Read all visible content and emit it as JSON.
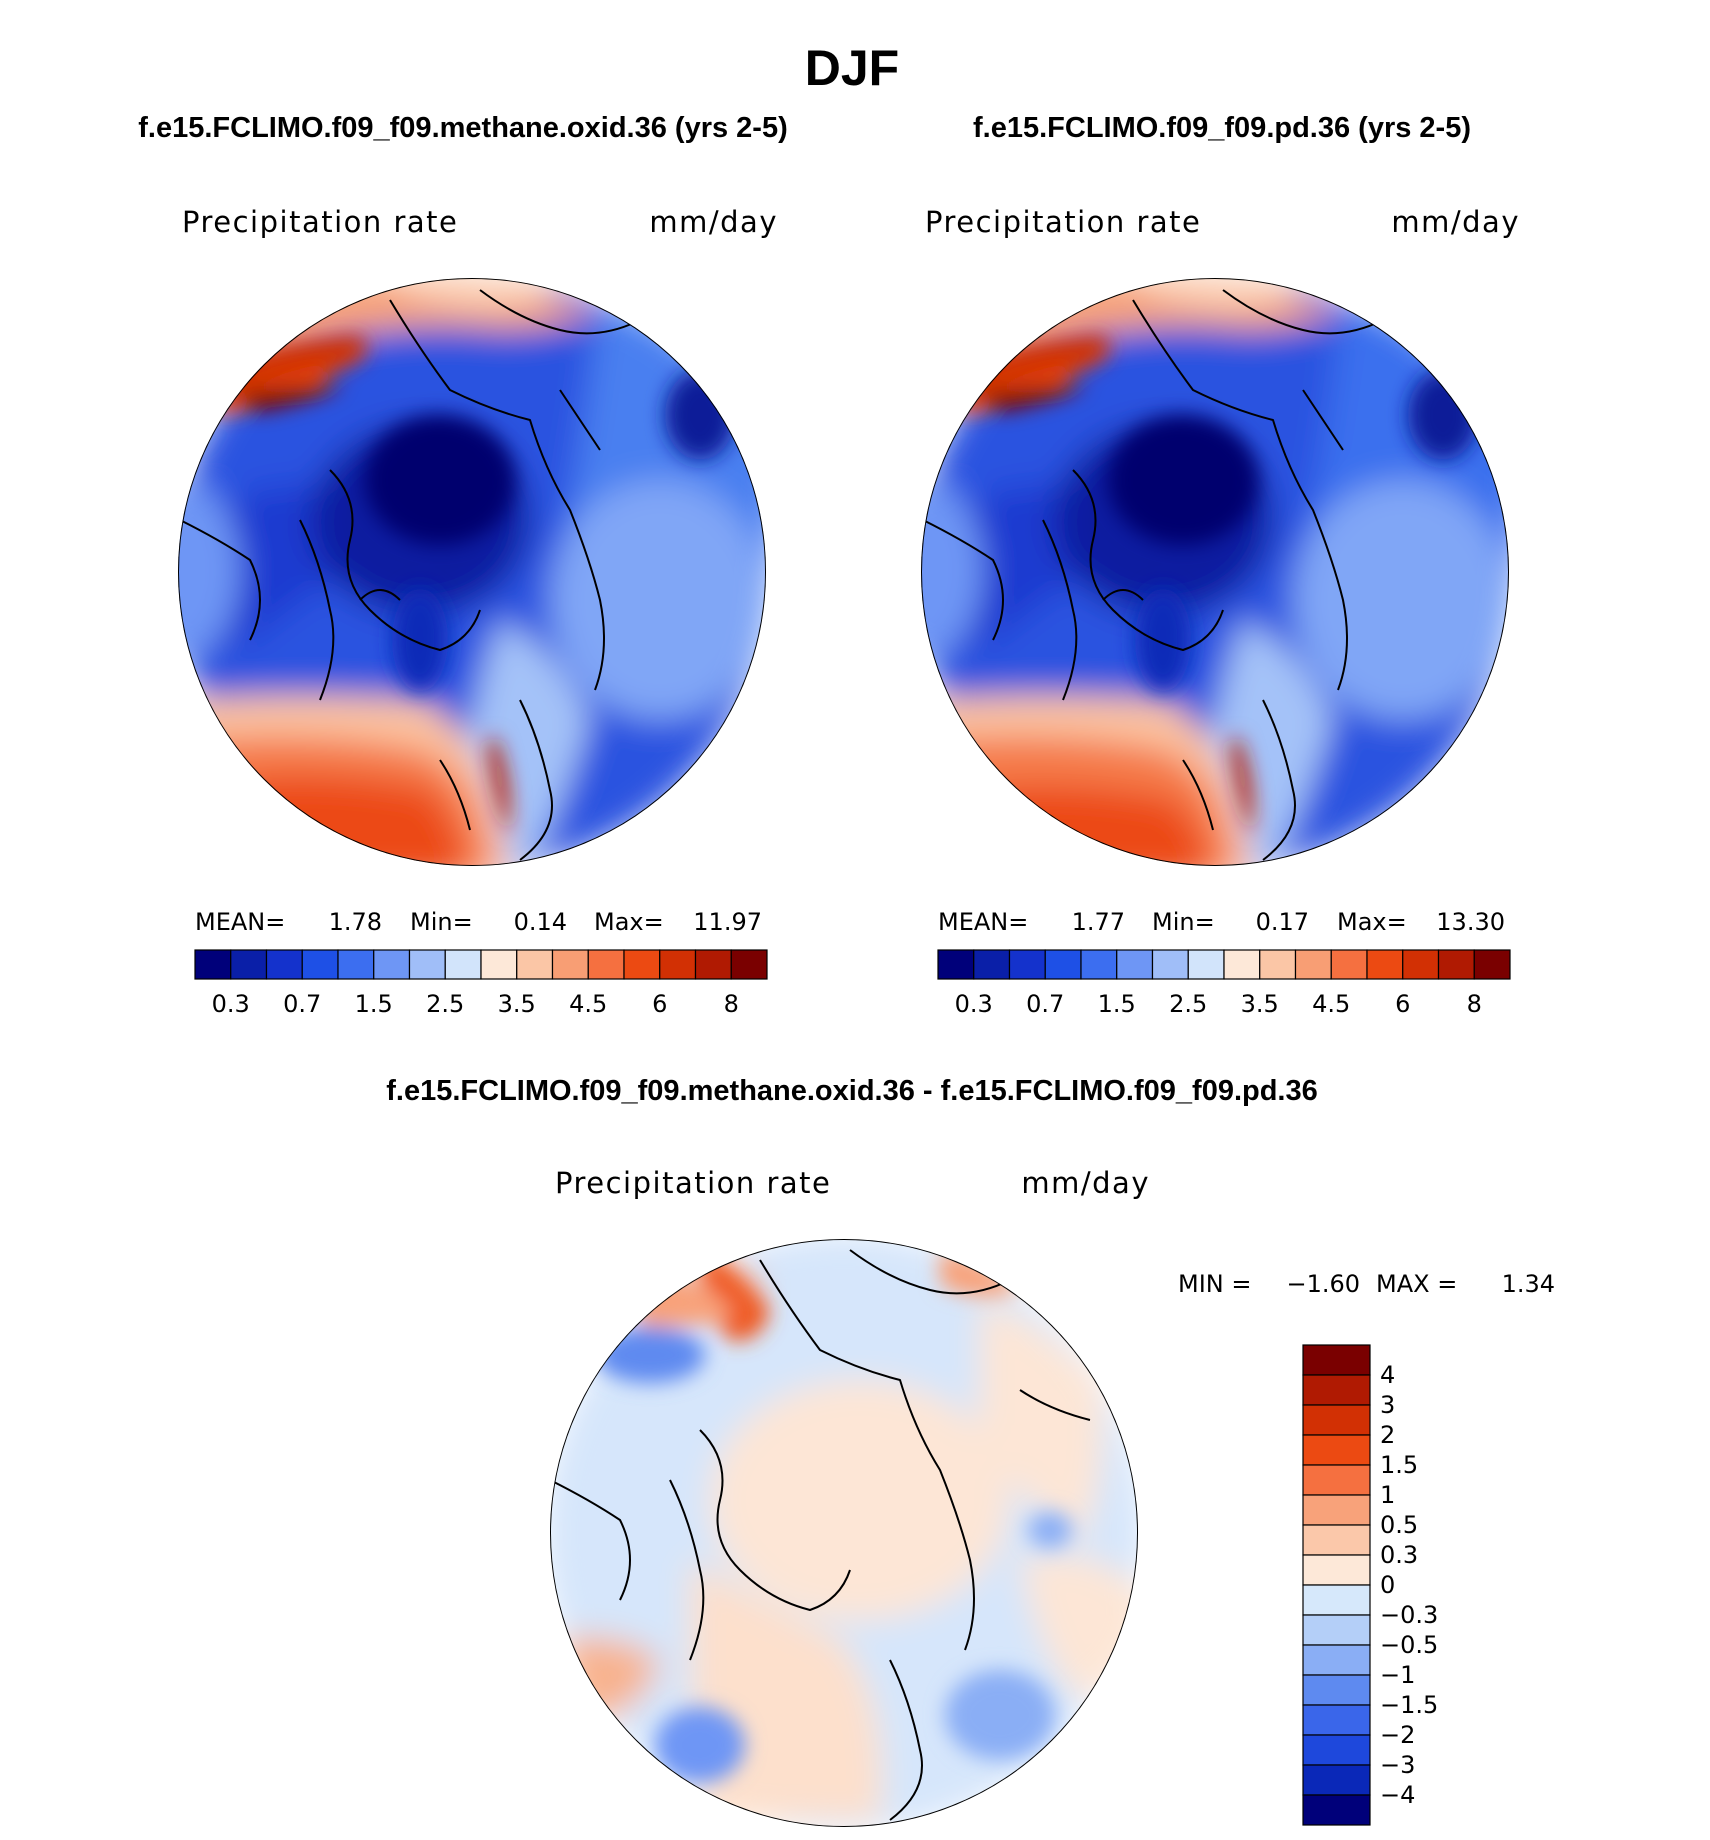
{
  "chart_data": [
    {
      "type": "polar-contour-map",
      "season": "DJF",
      "title": "f.e15.FCLIMO.f09_f09.methane.oxid.36 (yrs 2-5)",
      "variable": "Precipitation rate",
      "units": "mm/day",
      "stats": {
        "mean_label": "MEAN=",
        "mean": "1.78",
        "min_label": "Min=",
        "min": "0.14",
        "max_label": "Max=",
        "max": "11.97"
      },
      "colorbar": {
        "orientation": "horizontal",
        "colors": [
          "#00007a",
          "#0a1fa8",
          "#1432cc",
          "#1e50e6",
          "#3c6ef0",
          "#6e96f5",
          "#a0bef8",
          "#d2e4fb",
          "#fde8d8",
          "#fbc6a6",
          "#f89e74",
          "#f57040",
          "#ec4a12",
          "#d23004",
          "#b01a02",
          "#7a0000"
        ],
        "tick_labels": [
          "0.3",
          "0.7",
          "1.5",
          "2.5",
          "3.5",
          "4.5",
          "6",
          "8"
        ]
      }
    },
    {
      "type": "polar-contour-map",
      "season": "DJF",
      "title": "f.e15.FCLIMO.f09_f09.pd.36 (yrs 2-5)",
      "variable": "Precipitation rate",
      "units": "mm/day",
      "stats": {
        "mean_label": "MEAN=",
        "mean": "1.77",
        "min_label": "Min=",
        "min": "0.17",
        "max_label": "Max=",
        "max": "13.30"
      },
      "colorbar": {
        "orientation": "horizontal",
        "colors": [
          "#00007a",
          "#0a1fa8",
          "#1432cc",
          "#1e50e6",
          "#3c6ef0",
          "#6e96f5",
          "#a0bef8",
          "#d2e4fb",
          "#fde8d8",
          "#fbc6a6",
          "#f89e74",
          "#f57040",
          "#ec4a12",
          "#d23004",
          "#b01a02",
          "#7a0000"
        ],
        "tick_labels": [
          "0.3",
          "0.7",
          "1.5",
          "2.5",
          "3.5",
          "4.5",
          "6",
          "8"
        ]
      }
    },
    {
      "type": "polar-contour-map",
      "season": "DJF",
      "title": "f.e15.FCLIMO.f09_f09.methane.oxid.36 - f.e15.FCLIMO.f09_f09.pd.36",
      "variable": "Precipitation rate",
      "units": "mm/day",
      "stats": {
        "min_label": "MIN =",
        "min": "−1.60",
        "max_label": "MAX =",
        "max": "1.34"
      },
      "colorbar": {
        "orientation": "vertical",
        "colors": [
          "#7a0000",
          "#b01a02",
          "#d23004",
          "#ec4a12",
          "#f57040",
          "#f8a27a",
          "#fbc8aa",
          "#fde8d8",
          "#d6e8fb",
          "#b4cff8",
          "#8aaef5",
          "#5e8af0",
          "#3a66ea",
          "#1e48dc",
          "#0a28b8",
          "#00007a"
        ],
        "tick_labels": [
          "4",
          "3",
          "2",
          "1.5",
          "1",
          "0.5",
          "0.3",
          "0",
          "−0.3",
          "−0.5",
          "−1",
          "−1.5",
          "−2",
          "−3",
          "−4"
        ]
      }
    }
  ],
  "page_title": "DJF"
}
